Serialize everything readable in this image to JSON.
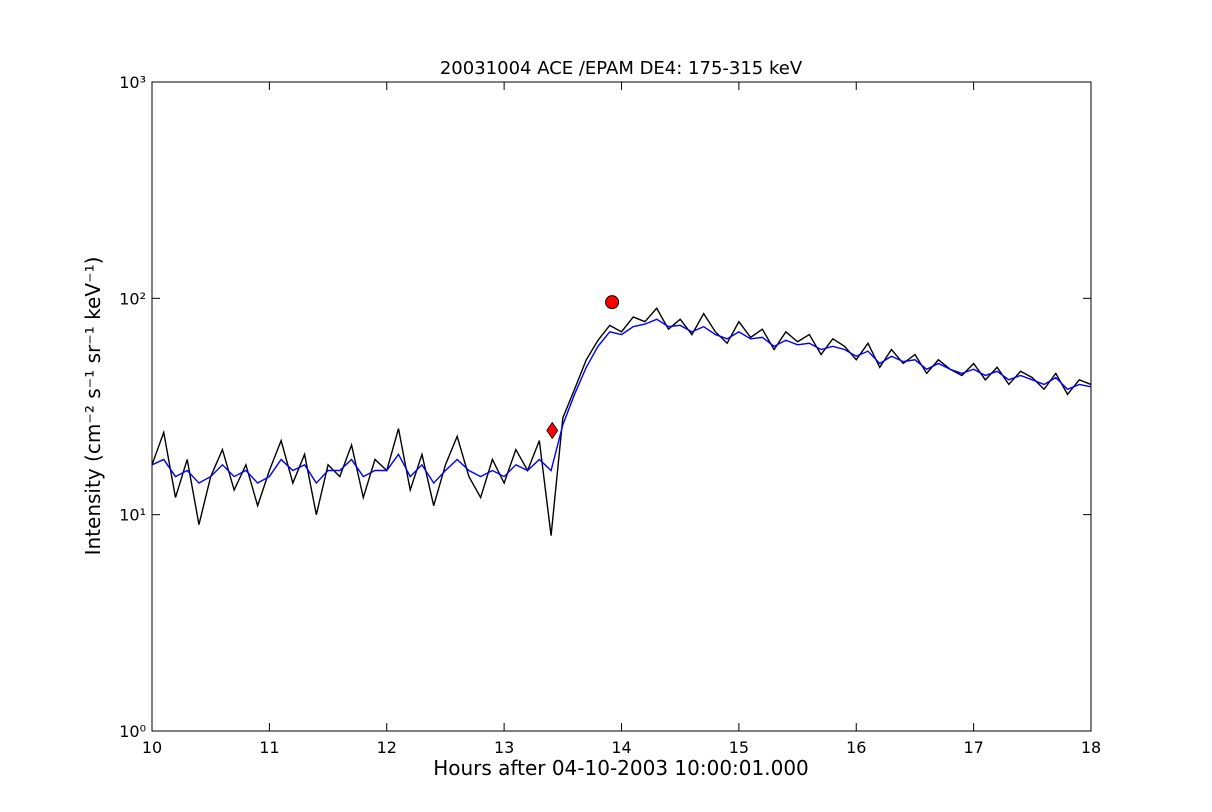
{
  "chart_data": {
    "type": "line",
    "title": "20031004 ACE /EPAM DE4: 175-315 keV",
    "xlabel": "Hours after 04-10-2003 10:00:01.000",
    "ylabel": "Intensity (cm⁻² s⁻¹ sr⁻¹ keV⁻¹)",
    "log_y": true,
    "xlim": [
      10,
      18
    ],
    "xticks": [
      10,
      11,
      12,
      13,
      14,
      15,
      16,
      17,
      18
    ],
    "ylim": [
      1,
      1000
    ],
    "yticks": [
      {
        "value": 1,
        "label": "10⁰"
      },
      {
        "value": 10,
        "label": "10¹"
      },
      {
        "value": 100,
        "label": "10²"
      },
      {
        "value": 1000,
        "label": "10³"
      }
    ],
    "x": [
      10.0,
      10.1,
      10.2,
      10.3,
      10.4,
      10.5,
      10.6,
      10.7,
      10.8,
      10.9,
      11.0,
      11.1,
      11.2,
      11.3,
      11.4,
      11.5,
      11.6,
      11.7,
      11.8,
      11.9,
      12.0,
      12.1,
      12.2,
      12.3,
      12.4,
      12.5,
      12.6,
      12.7,
      12.8,
      12.9,
      13.0,
      13.1,
      13.2,
      13.3,
      13.4,
      13.5,
      13.6,
      13.7,
      13.8,
      13.9,
      14.0,
      14.1,
      14.2,
      14.3,
      14.4,
      14.5,
      14.6,
      14.7,
      14.8,
      14.9,
      15.0,
      15.1,
      15.2,
      15.3,
      15.4,
      15.5,
      15.6,
      15.7,
      15.8,
      15.9,
      16.0,
      16.1,
      16.2,
      16.3,
      16.4,
      16.5,
      16.6,
      16.7,
      16.8,
      16.9,
      17.0,
      17.1,
      17.2,
      17.3,
      17.4,
      17.5,
      17.6,
      17.7,
      17.8,
      17.9,
      18.0
    ],
    "series": [
      {
        "color": "#000000",
        "values": [
          17,
          24,
          12,
          18,
          9,
          15,
          20,
          13,
          17,
          11,
          16,
          22,
          14,
          19,
          10,
          17,
          15,
          21,
          12,
          18,
          16,
          25,
          13,
          19,
          11,
          17,
          23,
          15,
          12,
          18,
          14,
          20,
          16,
          22,
          8,
          28,
          38,
          52,
          64,
          75,
          70,
          82,
          78,
          90,
          72,
          80,
          68,
          85,
          70,
          62,
          78,
          66,
          72,
          58,
          70,
          63,
          68,
          55,
          65,
          60,
          52,
          62,
          48,
          58,
          50,
          55,
          45,
          52,
          47,
          44,
          50,
          42,
          48,
          40,
          46,
          43,
          38,
          45,
          36,
          42,
          40
        ]
      },
      {
        "color": "#0000ff",
        "values": [
          17,
          18,
          15,
          16,
          14,
          15,
          17,
          15,
          16,
          14,
          15,
          18,
          16,
          17,
          14,
          16,
          16,
          18,
          15,
          16,
          16,
          19,
          15,
          17,
          14,
          16,
          18,
          16,
          15,
          16,
          15,
          17,
          16,
          18,
          16,
          26,
          36,
          48,
          60,
          70,
          68,
          74,
          76,
          80,
          74,
          75,
          70,
          74,
          68,
          65,
          70,
          65,
          66,
          60,
          64,
          61,
          62,
          58,
          60,
          58,
          54,
          57,
          50,
          54,
          51,
          52,
          47,
          50,
          47,
          45,
          47,
          44,
          46,
          42,
          44,
          42,
          40,
          43,
          38,
          40,
          39
        ]
      }
    ],
    "markers": [
      {
        "x": 13.41,
        "y": 24.5,
        "shape": "diamond",
        "color": "#ff0000"
      },
      {
        "x": 13.92,
        "y": 96,
        "shape": "circle",
        "color": "#ff0000"
      }
    ]
  }
}
